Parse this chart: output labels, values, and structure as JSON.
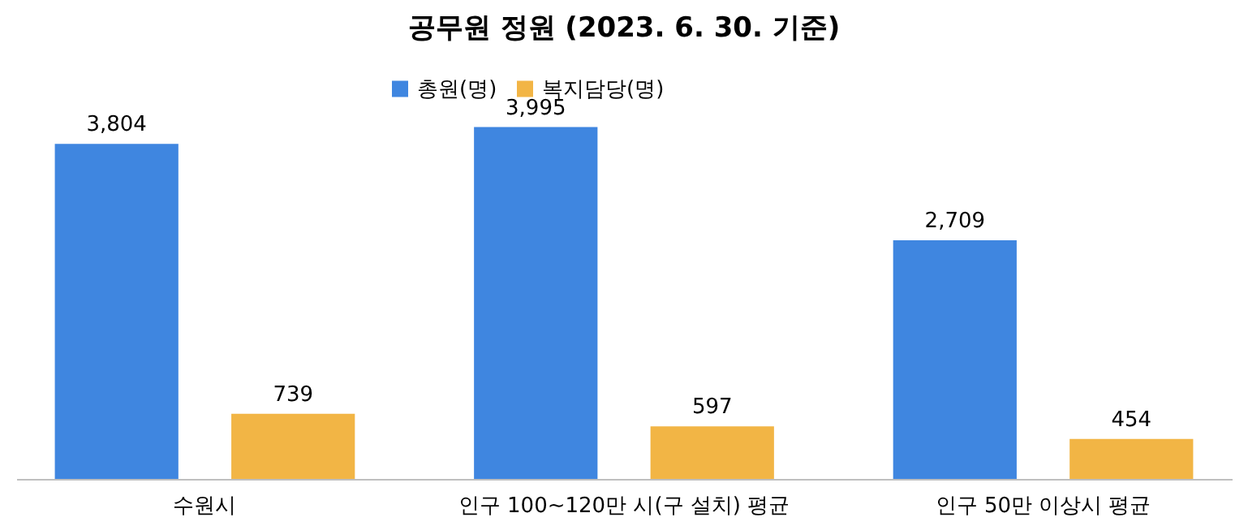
{
  "chart_data": {
    "type": "bar",
    "title": "공무원 정원 (2023. 6. 30. 기준)",
    "categories": [
      "수원시",
      "인구 100~120만 시(구 설치) 평균",
      "인구 50만 이상시 평균"
    ],
    "series": [
      {
        "name": "총원(명)",
        "color": "#3f86e0",
        "values": [
          3804,
          3995,
          2709
        ],
        "value_labels": [
          "3,804",
          "3,995",
          "2,709"
        ]
      },
      {
        "name": "복지담당(명)",
        "color": "#f2b545",
        "values": [
          739,
          597,
          454
        ],
        "value_labels": [
          "739",
          "597",
          "454"
        ]
      }
    ],
    "legend": "top",
    "grid": false
  }
}
